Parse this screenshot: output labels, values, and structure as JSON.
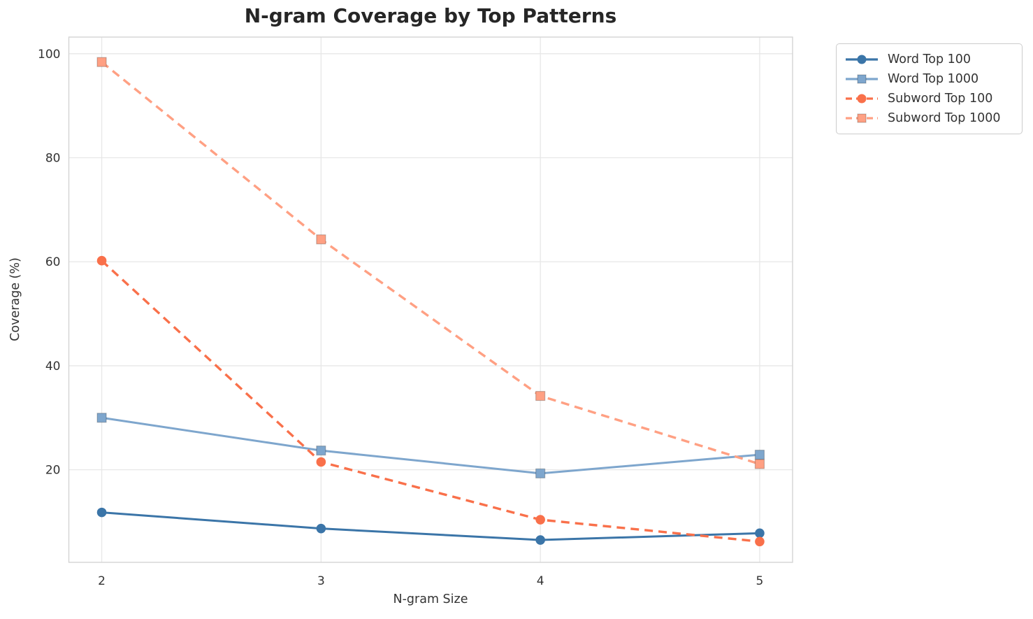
{
  "chart_data": {
    "type": "line",
    "title": "N-gram Coverage by Top Patterns",
    "xlabel": "N-gram Size",
    "ylabel": "Coverage (%)",
    "x": [
      2,
      3,
      4,
      5
    ],
    "xticks": [
      2,
      3,
      4,
      5
    ],
    "yticks": [
      20,
      40,
      60,
      80,
      100
    ],
    "xlim": [
      1.85,
      5.15
    ],
    "ylim": [
      2.2,
      103.2
    ],
    "grid": true,
    "legend_position": "outside-upper-right",
    "series": [
      {
        "name": "Word Top 100",
        "values": [
          11.8,
          8.7,
          6.5,
          7.8
        ],
        "color": "#3b75a8",
        "marker": "circle",
        "line_style": "solid"
      },
      {
        "name": "Word Top 1000",
        "values": [
          30.0,
          23.7,
          19.3,
          22.9
        ],
        "color": "#7ea6cd",
        "marker": "square",
        "line_style": "solid"
      },
      {
        "name": "Subword Top 100",
        "values": [
          60.2,
          21.5,
          10.4,
          6.2
        ],
        "color": "#f9704a",
        "marker": "circle",
        "line_style": "dashed"
      },
      {
        "name": "Subword Top 1000",
        "values": [
          98.4,
          64.3,
          34.2,
          21.1
        ],
        "color": "#ffa083",
        "marker": "square",
        "line_style": "dashed"
      }
    ],
    "colors": {
      "grid": "#e7e7e7",
      "spine": "#d4d4d4",
      "text": "#333333",
      "title": "#262626"
    }
  }
}
